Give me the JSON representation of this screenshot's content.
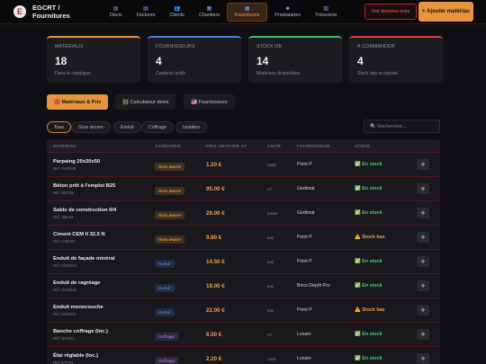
{
  "header": {
    "logo_glyph": "E",
    "title_line1": "EGCRT /",
    "title_line2": "Fournitures",
    "outline_btn": "Voir données tests",
    "primary_btn": "+ Ajouter matériau",
    "nav": [
      {
        "icon": "document-icon",
        "glyph": "▤",
        "label": "Devis"
      },
      {
        "icon": "invoice-icon",
        "glyph": "▤",
        "label": "Factures"
      },
      {
        "icon": "clients-icon",
        "glyph": "👥",
        "label": "Clients"
      },
      {
        "icon": "construction-icon",
        "glyph": "▦",
        "label": "Chantiers"
      },
      {
        "icon": "box-icon",
        "glyph": "▦",
        "label": "Fournitures"
      },
      {
        "icon": "worker-icon",
        "glyph": "☻",
        "label": "Prestataires"
      },
      {
        "icon": "bank-icon",
        "glyph": "▥",
        "label": "Trésorerie"
      }
    ]
  },
  "stats": [
    {
      "label": "MATÉRIAUX",
      "value": "18",
      "sub": "Dans le catalogue",
      "accent": "#e6953e"
    },
    {
      "label": "FOURNISSEURS",
      "value": "4",
      "sub": "Contacts actifs",
      "accent": "#4a7fd6"
    },
    {
      "label": "STOCK OK",
      "value": "14",
      "sub": "Matériaux disponibles",
      "accent": "#3fb96b"
    },
    {
      "label": "À COMMANDER",
      "value": "4",
      "sub": "Stock bas ou épuisé",
      "accent": "#d0443a"
    }
  ],
  "tabs": [
    {
      "label": "🧱 Matériaux & Prix"
    },
    {
      "label": "🧮 Calculateur devis"
    },
    {
      "label": "🏭 Fournisseurs"
    }
  ],
  "filters": [
    "Tous",
    "Gros œuvre",
    "Enduit",
    "Coffrage",
    "Isolation"
  ],
  "search_placeholder": "🔍 Rechercher...",
  "columns": [
    "MATÉRIAU",
    "CATÉGORIE",
    "PRIX UNITAIRE HT",
    "UNITÉ",
    "FOURNISSEUR",
    "STOCK",
    ""
  ],
  "rows": [
    {
      "name": "Parpaing 20x20x50",
      "ref": "Réf. PAR205",
      "cat": "Gros œuvre",
      "price": "1.20 €",
      "unit": "unité",
      "supplier": "Point P",
      "stock": "✅ En stock",
      "stock_state": "ok"
    },
    {
      "name": "Béton prêt à l'emploi B25",
      "ref": "Réf. BET25",
      "cat": "Gros œuvre",
      "price": "95.00 €",
      "unit": "m³",
      "supplier": "Gedimat",
      "stock": "✅ En stock",
      "stock_state": "ok"
    },
    {
      "name": "Sable de construction 0/4",
      "ref": "Réf. SBL04",
      "cat": "Gros œuvre",
      "price": "28.00 €",
      "unit": "tonne",
      "supplier": "Gedimat",
      "stock": "✅ En stock",
      "stock_state": "ok"
    },
    {
      "name": "Ciment CEM II 32,5 N",
      "ref": "Réf. CIM325",
      "cat": "Gros œuvre",
      "price": "9.80 €",
      "unit": "sac",
      "supplier": "Point P",
      "stock": "⚠️ Stock bas",
      "stock_state": "low"
    },
    {
      "name": "Enduit de façade minéral",
      "ref": "Réf. ENDO01",
      "cat": "Enduit",
      "price": "14.50 €",
      "unit": "sac",
      "supplier": "Point P",
      "stock": "✅ En stock",
      "stock_state": "ok"
    },
    {
      "name": "Enduit de ragréage",
      "ref": "Réf. RAGE01",
      "cat": "Enduit",
      "price": "18.00 €",
      "unit": "sac",
      "supplier": "Brico Dépôt Pro",
      "stock": "✅ En stock",
      "stock_state": "ok"
    },
    {
      "name": "Enduit monocouche",
      "ref": "Réf. MONO1",
      "cat": "Enduit",
      "price": "22.00 €",
      "unit": "sac",
      "supplier": "Point P",
      "stock": "⚠️ Stock bas",
      "stock_state": "low"
    },
    {
      "name": "Banche coffrage (loc.)",
      "ref": "Réf. BCH01",
      "cat": "Coffrage",
      "price": "8.50 €",
      "unit": "m²",
      "supplier": "Loxam",
      "stock": "✅ En stock",
      "stock_state": "ok"
    },
    {
      "name": "Étai réglable (loc.)",
      "ref": "Réf. ETA01",
      "cat": "Coffrage",
      "price": "2.20 €",
      "unit": "unité",
      "supplier": "Loxam",
      "stock": "✅ En stock",
      "stock_state": "ok"
    }
  ],
  "colors": {
    "gros_oeuvre": "#e6953e",
    "enduit": "#4a7fd6",
    "coffrage": "#8f6bd6",
    "ok": "#4fc97a",
    "low": "#f0a33a"
  }
}
